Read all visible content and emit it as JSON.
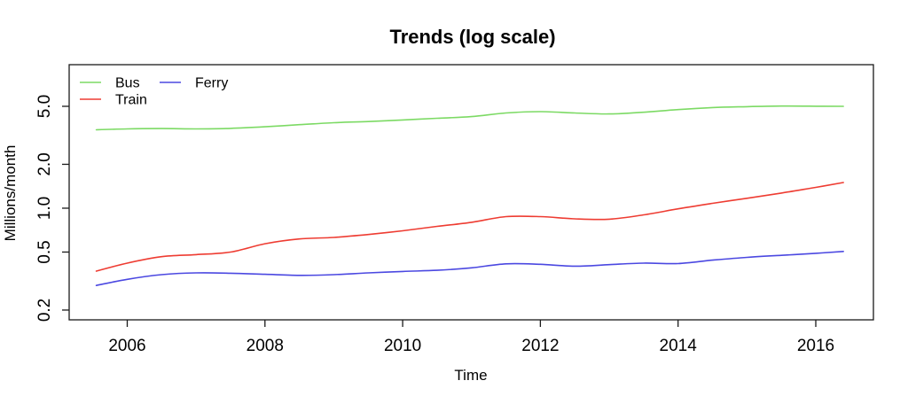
{
  "figure": {
    "title": "Trends (log scale)",
    "xlabel": "Time",
    "ylabel": "Millions/month"
  },
  "colors": {
    "bus": "#7cda64",
    "train": "#ee3c32",
    "ferry": "#4b48e1",
    "axis": "#1a1a1a",
    "text": "#000000",
    "background": "#ffffff"
  },
  "legend": {
    "entries": [
      {
        "label": "Bus",
        "series": "bus",
        "col": 0,
        "row": 0
      },
      {
        "label": "Train",
        "series": "train",
        "col": 0,
        "row": 1
      },
      {
        "label": "Ferry",
        "series": "ferry",
        "col": 1,
        "row": 0
      }
    ]
  },
  "chart_data": {
    "type": "line",
    "title": "Trends (log scale)",
    "xlabel": "Time",
    "ylabel": "Millions/month",
    "yscale": "log",
    "grid": false,
    "legend_position": "top-left",
    "xlim": [
      2005.16,
      2016.83
    ],
    "ylim": [
      0.17,
      9.6
    ],
    "xticks": {
      "values": [
        2006,
        2008,
        2010,
        2012,
        2014,
        2016
      ],
      "labels": [
        "2006",
        "2008",
        "2010",
        "2012",
        "2014",
        "2016"
      ]
    },
    "yticks": {
      "values": [
        0.2,
        0.5,
        1.0,
        2.0,
        5.0
      ],
      "labels": [
        "0.2",
        "0.5",
        "1.0",
        "2.0",
        "5.0"
      ]
    },
    "x": [
      2005.55,
      2006,
      2006.5,
      2007,
      2007.5,
      2008,
      2008.5,
      2009,
      2009.5,
      2010,
      2010.5,
      2011,
      2011.5,
      2012,
      2012.5,
      2013,
      2013.5,
      2014,
      2014.5,
      2015,
      2015.5,
      2016,
      2016.4
    ],
    "series": [
      {
        "name": "Bus",
        "color_key": "bus",
        "values": [
          3.45,
          3.5,
          3.52,
          3.5,
          3.53,
          3.62,
          3.74,
          3.86,
          3.93,
          4.03,
          4.14,
          4.25,
          4.5,
          4.6,
          4.5,
          4.43,
          4.55,
          4.75,
          4.9,
          4.97,
          5.02,
          5.01,
          5.0
        ]
      },
      {
        "name": "Train",
        "color_key": "train",
        "values": [
          0.37,
          0.42,
          0.465,
          0.48,
          0.5,
          0.57,
          0.615,
          0.63,
          0.66,
          0.7,
          0.75,
          0.8,
          0.875,
          0.875,
          0.845,
          0.84,
          0.9,
          0.99,
          1.08,
          1.17,
          1.27,
          1.39,
          1.5
        ]
      },
      {
        "name": "Ferry",
        "color_key": "ferry",
        "values": [
          0.295,
          0.325,
          0.35,
          0.36,
          0.358,
          0.352,
          0.346,
          0.35,
          0.36,
          0.368,
          0.375,
          0.39,
          0.415,
          0.412,
          0.4,
          0.41,
          0.42,
          0.417,
          0.44,
          0.46,
          0.475,
          0.49,
          0.505
        ]
      }
    ]
  }
}
